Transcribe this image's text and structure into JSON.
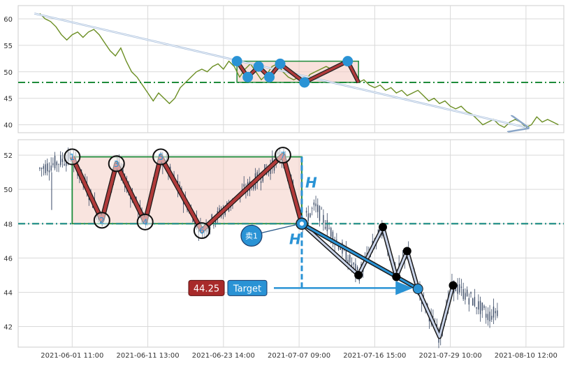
{
  "chart_data": [
    {
      "type": "line",
      "panel": "overview",
      "ylim": [
        38.5,
        62.5
      ],
      "yticks": [
        40,
        45,
        50,
        55,
        60
      ],
      "grid": true,
      "colors": {
        "price": "#6b8e23",
        "box": "#1e8b3a",
        "fill": "#f4c9c0",
        "zigzag": "#b03a3a",
        "marker": "#2a93d5",
        "trend": "#9db7d8"
      },
      "price_series": [
        [
          0,
          61
        ],
        [
          1,
          60
        ],
        [
          2,
          59.5
        ],
        [
          3,
          58.5
        ],
        [
          4,
          57
        ],
        [
          5,
          56
        ],
        [
          6,
          57
        ],
        [
          7,
          57.5
        ],
        [
          8,
          56.5
        ],
        [
          9,
          57.5
        ],
        [
          10,
          58
        ],
        [
          11,
          57
        ],
        [
          12,
          55.5
        ],
        [
          13,
          54
        ],
        [
          14,
          53
        ],
        [
          15,
          54.5
        ],
        [
          16,
          52
        ],
        [
          17,
          50
        ],
        [
          18,
          49
        ],
        [
          19,
          47.5
        ],
        [
          20,
          46
        ],
        [
          21,
          44.5
        ],
        [
          22,
          46
        ],
        [
          23,
          45
        ],
        [
          24,
          44
        ],
        [
          25,
          45
        ],
        [
          26,
          47
        ],
        [
          27,
          48
        ],
        [
          28,
          49
        ],
        [
          29,
          50
        ],
        [
          30,
          50.5
        ],
        [
          31,
          50
        ],
        [
          32,
          51
        ],
        [
          33,
          51.5
        ],
        [
          34,
          50.5
        ],
        [
          35,
          52
        ],
        [
          36,
          51
        ],
        [
          37,
          49
        ],
        [
          38,
          50.5
        ],
        [
          39,
          51.5
        ],
        [
          40,
          50
        ],
        [
          41,
          48.5
        ],
        [
          42,
          49.5
        ],
        [
          43,
          51
        ],
        [
          44,
          51.5
        ],
        [
          45,
          50
        ],
        [
          46,
          49
        ],
        [
          47,
          48.5
        ],
        [
          48,
          49
        ],
        [
          49,
          48
        ],
        [
          50,
          49.5
        ],
        [
          51,
          50
        ],
        [
          52,
          50.5
        ],
        [
          53,
          51
        ],
        [
          54,
          50.5
        ],
        [
          55,
          51
        ],
        [
          56,
          51.5
        ],
        [
          57,
          52
        ],
        [
          58,
          50
        ],
        [
          59,
          48
        ],
        [
          60,
          48.5
        ],
        [
          61,
          47.5
        ],
        [
          62,
          47
        ],
        [
          63,
          47.5
        ],
        [
          64,
          46.5
        ],
        [
          65,
          47
        ],
        [
          66,
          46
        ],
        [
          67,
          46.5
        ],
        [
          68,
          45.5
        ],
        [
          69,
          46
        ],
        [
          70,
          46.5
        ],
        [
          71,
          45.5
        ],
        [
          72,
          44.5
        ],
        [
          73,
          45
        ],
        [
          74,
          44
        ],
        [
          75,
          44.5
        ],
        [
          76,
          43.5
        ],
        [
          77,
          43
        ],
        [
          78,
          43.5
        ],
        [
          79,
          42.5
        ],
        [
          80,
          42
        ],
        [
          81,
          41
        ],
        [
          82,
          40
        ],
        [
          83,
          40.5
        ],
        [
          84,
          41
        ],
        [
          85,
          40
        ],
        [
          86,
          39.5
        ],
        [
          87,
          40.5
        ],
        [
          88,
          41
        ],
        [
          89,
          40.5
        ],
        [
          90,
          39.5
        ],
        [
          91,
          40
        ],
        [
          92,
          41.5
        ],
        [
          93,
          40.5
        ],
        [
          94,
          41
        ],
        [
          95,
          40.5
        ],
        [
          96,
          40
        ]
      ],
      "zigzag_points": [
        [
          36.5,
          52
        ],
        [
          38.5,
          49
        ],
        [
          40.5,
          51
        ],
        [
          42.5,
          49
        ],
        [
          44.5,
          51.5
        ],
        [
          49,
          48
        ],
        [
          57,
          52
        ],
        [
          59,
          48
        ]
      ],
      "pattern_box": {
        "x_start": 36.5,
        "x_end": 59,
        "y_low": 48,
        "y_high": 52
      },
      "support_level": 48,
      "trend_arrow": {
        "from": [
          -1,
          61
        ],
        "to": [
          90,
          39.5
        ]
      }
    },
    {
      "type": "candlestick",
      "panel": "detail",
      "ylim": [
        40.8,
        52.9
      ],
      "yticks": [
        42,
        44,
        46,
        48,
        50,
        52
      ],
      "xtick_labels": [
        "2021-06-01 11:00",
        "2021-06-11 13:00",
        "2021-06-23 14:00",
        "2021-07-07 09:00",
        "2021-07-16 15:00",
        "2021-07-29 10:00",
        "2021-08-10 12:00"
      ],
      "grid": true,
      "pattern_points": [
        {
          "label": "1",
          "x": 6,
          "y": 51.9
        },
        {
          "label": "2",
          "x": 11.5,
          "y": 48.2
        },
        {
          "label": "3",
          "x": 14.2,
          "y": 51.5
        },
        {
          "label": "4",
          "x": 19.5,
          "y": 48.1
        },
        {
          "label": "5",
          "x": 22.4,
          "y": 51.9
        },
        {
          "label": "6",
          "x": 30,
          "y": 47.6
        },
        {
          "label": "7",
          "x": 45,
          "y": 52.0
        }
      ],
      "breakout_point": {
        "x": 48.5,
        "y": 48
      },
      "pattern_box": {
        "x_start": 6,
        "x_end": 48.5,
        "y_low": 48,
        "y_high": 51.9
      },
      "support_level": 48,
      "height_label": "H",
      "sell_marker_label": "卖1",
      "projection_points": [
        [
          48.5,
          48
        ],
        [
          59,
          45.0
        ],
        [
          63.5,
          47.8
        ],
        [
          66,
          44.9
        ],
        [
          68,
          46.4
        ],
        [
          70,
          44.2
        ],
        [
          74,
          41.4
        ],
        [
          76.5,
          44.4
        ]
      ],
      "target_line": {
        "from": [
          48.5,
          48
        ],
        "to": [
          70,
          44.2
        ]
      },
      "target_value": "44.25",
      "target_label": "Target"
    }
  ]
}
